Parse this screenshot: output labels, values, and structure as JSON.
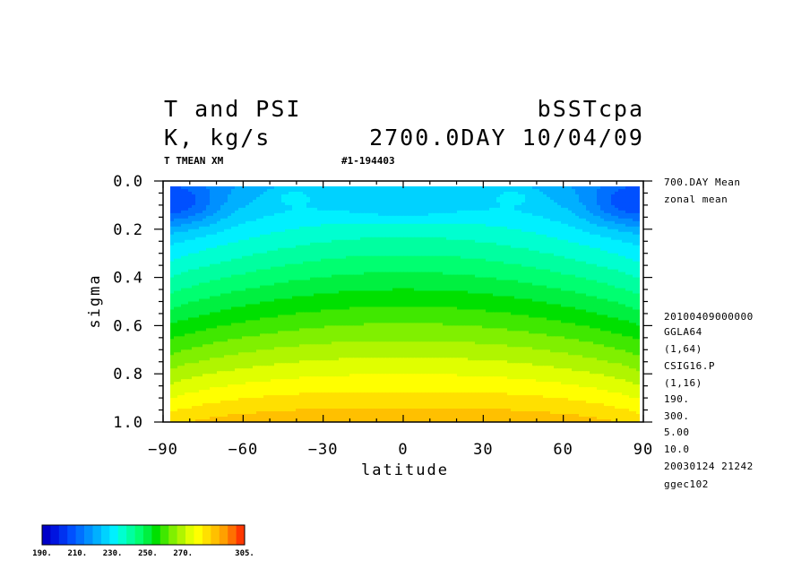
{
  "header": {
    "title_left": "T and PSI",
    "title_right": "bSSTcpa",
    "units": "K, kg/s",
    "time": "2700.0DAY 10/04/09",
    "var_code": "T TMEAN XM",
    "run_id": "#1-194403"
  },
  "side_info": [
    "700.DAY Mean",
    "zonal mean",
    "20100409000000",
    "GGLA64",
    "(1,64)",
    "CSIG16.P",
    "(1,16)",
    "190.",
    "300.",
    "5.00",
    "10.0",
    "20030124  21242",
    "ggec102"
  ],
  "chart_data": {
    "type": "heatmap",
    "title": "T and PSI",
    "xlabel": "latitude",
    "ylabel": "sigma",
    "xlim": [
      -90,
      90
    ],
    "ylim": [
      1.0,
      0.0
    ],
    "x_ticks": [
      -90,
      -60,
      -30,
      0,
      30,
      60,
      90
    ],
    "x_tick_labels": [
      "−90",
      "−60",
      "−30",
      "0",
      "30",
      "60",
      "90"
    ],
    "y_ticks": [
      0.0,
      0.2,
      0.4,
      0.6,
      0.8,
      1.0
    ],
    "y_tick_labels": [
      "0.0",
      "0.2",
      "0.4",
      "0.6",
      "0.8",
      "1.0"
    ],
    "contour_interval": 5,
    "value_range": [
      190,
      305
    ],
    "colorbar": {
      "tick_labels": [
        "190.",
        "210.",
        "230.",
        "250.",
        "270.",
        "305."
      ],
      "colors": [
        "#0000c8",
        "#0014e0",
        "#0032f0",
        "#0050ff",
        "#0070ff",
        "#0090ff",
        "#00b0ff",
        "#00d2ff",
        "#00f0ff",
        "#00ffd0",
        "#00ffa0",
        "#00ff70",
        "#00f040",
        "#00e000",
        "#40e800",
        "#80f000",
        "#b0f500",
        "#e0ff00",
        "#ffff00",
        "#ffe000",
        "#ffc000",
        "#ffa000",
        "#ff7000",
        "#ff3800"
      ]
    },
    "grid": false
  }
}
